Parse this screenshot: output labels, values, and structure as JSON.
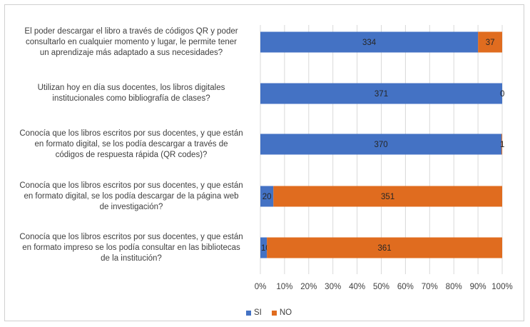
{
  "chart_data": {
    "type": "bar",
    "orientation": "horizontal",
    "stacked": "percent",
    "categories": [
      "El poder descargar el libro a través de códigos QR y poder consultarlo en cualquier momento y lugar, le permite tener un aprendizaje más adaptado a sus necesidades?",
      "Utilizan hoy en día sus docentes, los libros digitales institucionales como bibliografía de clases?",
      "Conocía que los libros escritos por sus docentes, y que están en formato digital, se los podía descargar a través de códigos de respuesta rápida (QR codes)?",
      "Conocía que los libros escritos por sus docentes, y que están en formato digital, se los podía descargar de la página web de investigación?",
      "Conocía que los libros escritos por sus docentes, y que están en formato impreso se los podía consultar en las bibliotecas de la institución?"
    ],
    "category_lines": [
      [
        "El poder descargar el libro a través de códigos QR y poder",
        "consultarlo en cualquier momento y lugar, le permite tener",
        "un aprendizaje más adaptado a sus necesidades?"
      ],
      [
        "Utilizan hoy en día sus docentes, los libros digitales",
        "institucionales como bibliografía de clases?"
      ],
      [
        "Conocía que los libros escritos por sus docentes, y que están",
        "en formato digital, se los podía descargar a través de",
        "códigos de respuesta rápida (QR codes)?"
      ],
      [
        "Conocía que los libros escritos por sus docentes, y que están",
        "en formato digital, se los podía descargar de la página web",
        "de investigación?"
      ],
      [
        "Conocía que los libros escritos por sus docentes, y que están",
        "en formato impreso se los podía consultar en las bibliotecas",
        "de la institución?"
      ]
    ],
    "series": [
      {
        "name": "SI",
        "values": [
          334,
          371,
          370,
          20,
          10
        ],
        "color": "#4472C4"
      },
      {
        "name": "NO",
        "values": [
          37,
          0,
          1,
          351,
          361
        ],
        "color": "#E06C1F"
      }
    ],
    "x_ticks": [
      "0%",
      "10%",
      "20%",
      "30%",
      "40%",
      "50%",
      "60%",
      "70%",
      "80%",
      "90%",
      "100%"
    ],
    "xlim": [
      0,
      100
    ],
    "grid": true,
    "legend_position": "bottom"
  }
}
